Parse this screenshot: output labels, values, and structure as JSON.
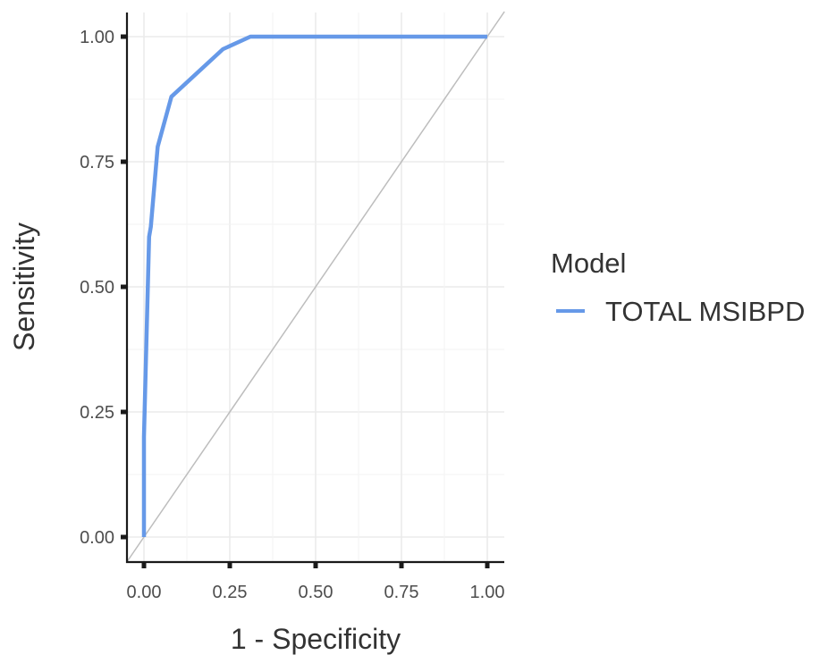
{
  "chart_data": {
    "type": "line",
    "xlabel": "1 - Specificity",
    "ylabel": "Sensitivity",
    "xlim": [
      0,
      1
    ],
    "ylim": [
      0,
      1
    ],
    "x_ticks": [
      "0.00",
      "0.25",
      "0.50",
      "0.75",
      "1.00"
    ],
    "y_ticks": [
      "0.00",
      "0.25",
      "0.50",
      "0.75",
      "1.00"
    ],
    "grid": true,
    "reference_line": {
      "x": [
        0,
        1
      ],
      "y": [
        0,
        1
      ],
      "color": "#bdbdbd"
    },
    "legend": {
      "title": "Model",
      "position": "right"
    },
    "series": [
      {
        "name": "TOTAL MSIBPD",
        "color": "#6699e8",
        "x": [
          0.0,
          0.0,
          0.015,
          0.02,
          0.04,
          0.08,
          0.23,
          0.31,
          1.0
        ],
        "y": [
          0.0,
          0.2,
          0.6,
          0.62,
          0.78,
          0.88,
          0.975,
          1.0,
          1.0
        ]
      }
    ]
  }
}
